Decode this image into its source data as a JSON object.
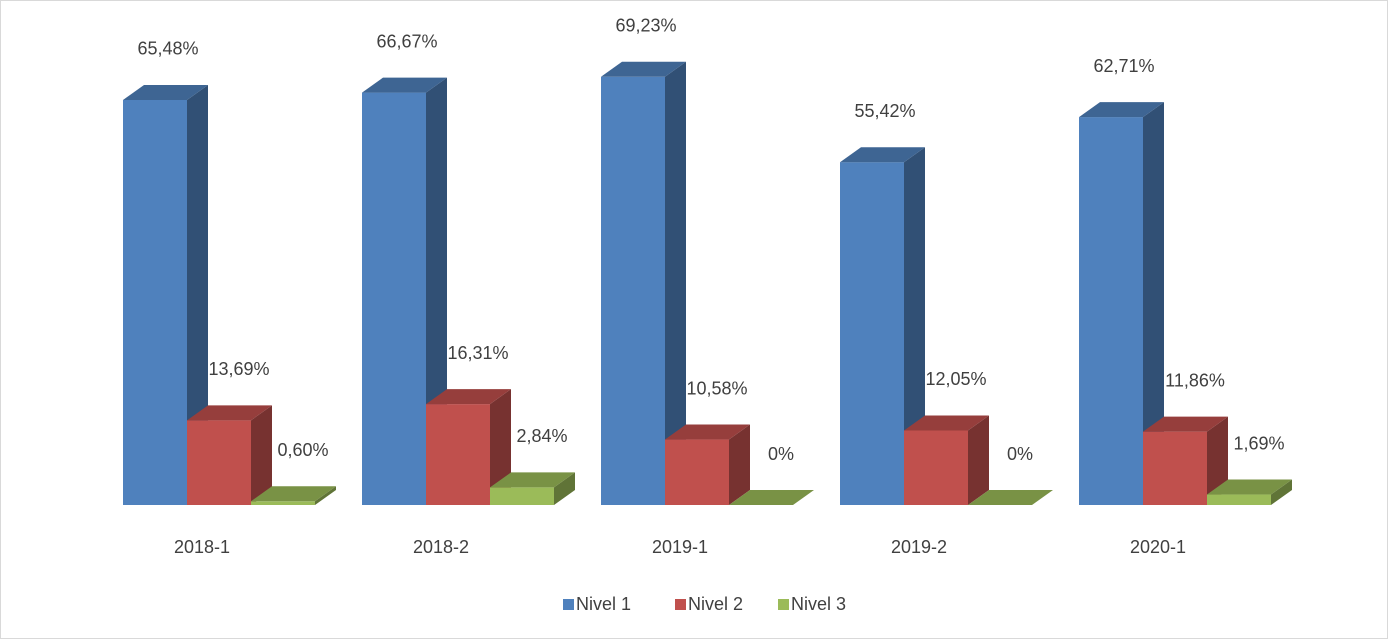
{
  "chart_data": {
    "type": "bar3d",
    "categories": [
      "2018-1",
      "2018-2",
      "2019-1",
      "2019-2",
      "2020-1"
    ],
    "series": [
      {
        "name": "Nivel 1",
        "color": "#4f81bd",
        "values": [
          65.48,
          66.67,
          69.23,
          55.42,
          62.71
        ],
        "value_labels": [
          "65,48%",
          "66,67%",
          "69,23%",
          "55,42%",
          "62,71%"
        ]
      },
      {
        "name": "Nivel 2",
        "color": "#c0504d",
        "values": [
          13.69,
          16.31,
          10.58,
          12.05,
          11.86
        ],
        "value_labels": [
          "13,69%",
          "16,31%",
          "10,58%",
          "12,05%",
          "11,86%"
        ]
      },
      {
        "name": "Nivel 3",
        "color": "#9bbb59",
        "values": [
          0.6,
          2.84,
          0,
          0,
          1.69
        ],
        "value_labels": [
          "0,60%",
          "2,84%",
          "0%",
          "0%",
          "1,69%"
        ]
      }
    ],
    "ylim": [
      0,
      70
    ],
    "legend": "bottom"
  }
}
